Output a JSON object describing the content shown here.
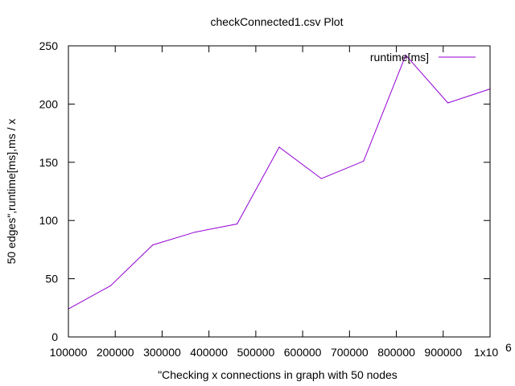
{
  "chart_data": {
    "type": "line",
    "title": "checkConnected1.csv Plot",
    "xlabel": "\"Checking x connections in graph with 50 nodes",
    "ylabel": "50 edges\",runtime[ms],ms / x",
    "xlim": [
      100000,
      1000000
    ],
    "ylim": [
      0,
      250
    ],
    "x_ticks": [
      100000,
      200000,
      300000,
      400000,
      500000,
      600000,
      700000,
      800000,
      900000,
      1000000
    ],
    "x_tick_labels": [
      "100000",
      "200000",
      "300000",
      "400000",
      "500000",
      "600000",
      "700000",
      "800000",
      "900000",
      "1x10"
    ],
    "x_tick_exponent": "6",
    "y_ticks": [
      0,
      50,
      100,
      150,
      200,
      250
    ],
    "y_tick_labels": [
      "0",
      "50",
      "100",
      "150",
      "200",
      "250"
    ],
    "grid": false,
    "legend_position": "top-right",
    "series": [
      {
        "name": "runtime[ms]",
        "color": "#9400d3",
        "x": [
          100000,
          190000,
          280000,
          370000,
          460000,
          550000,
          640000,
          730000,
          820000,
          910000,
          1000000
        ],
        "values": [
          24,
          44,
          79,
          90,
          97,
          163,
          136,
          151,
          242,
          201,
          213
        ]
      }
    ]
  }
}
